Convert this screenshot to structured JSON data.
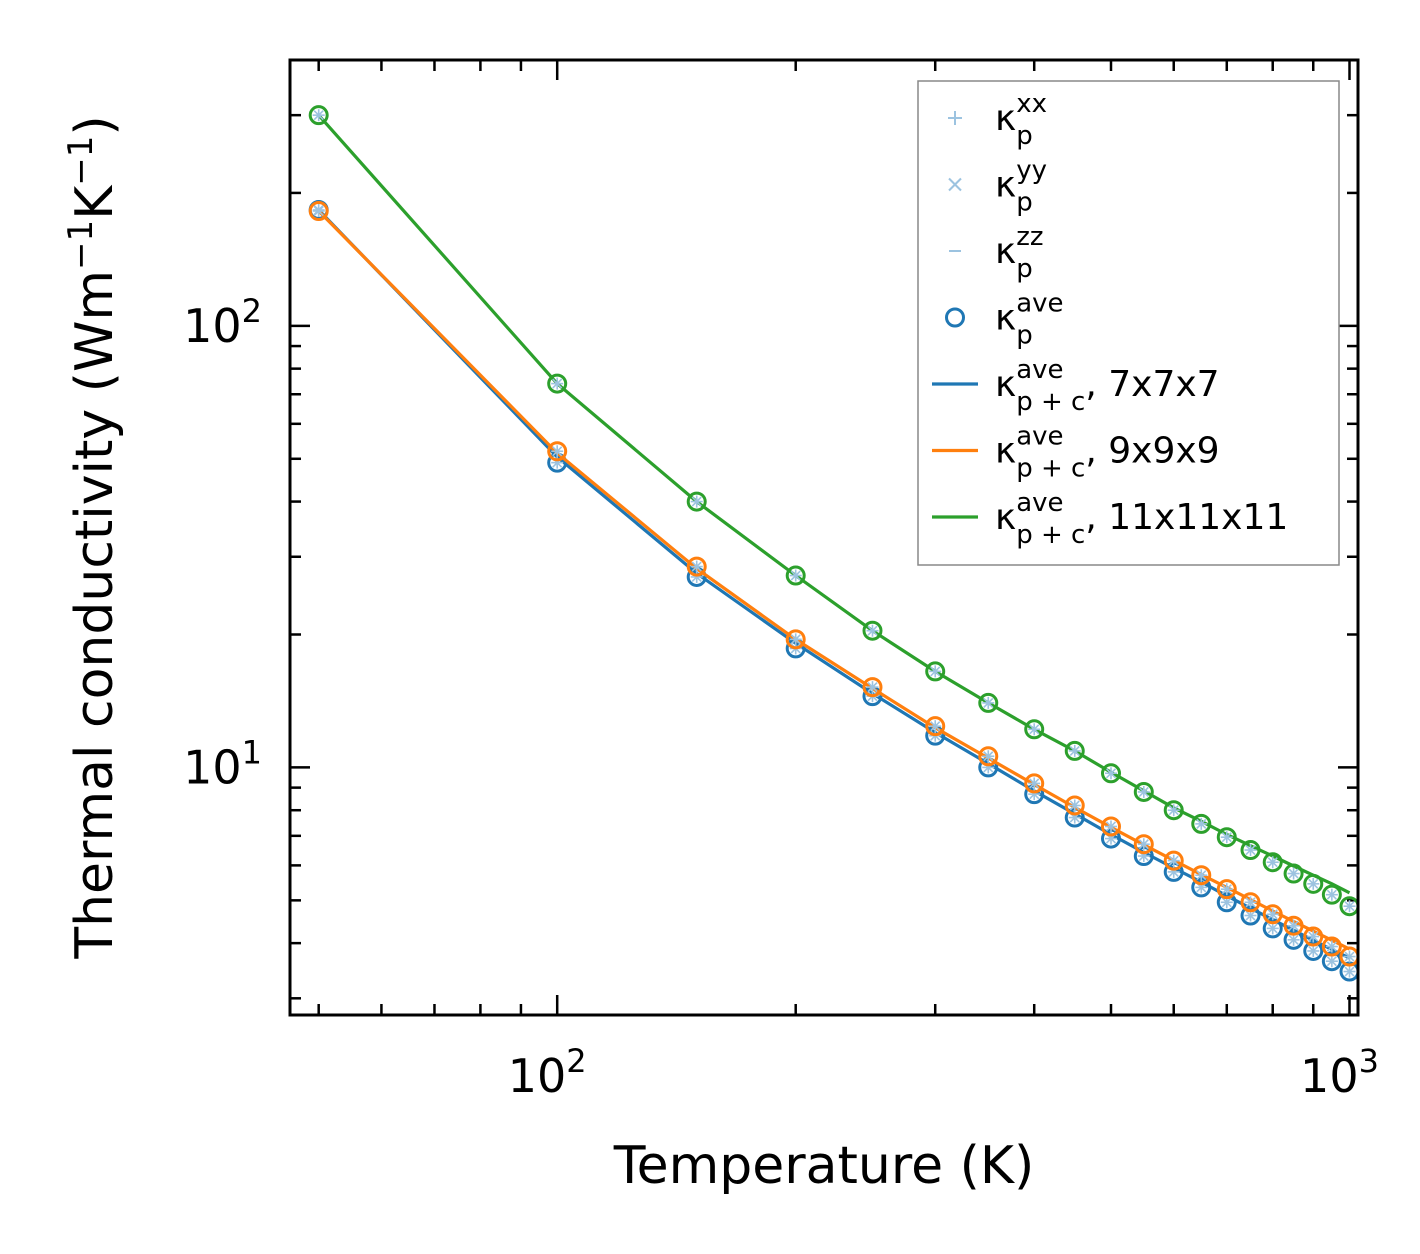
{
  "chart_data": {
    "type": "line",
    "xscale": "log",
    "yscale": "log",
    "xlabel": "Temperature (K)",
    "ylabel": {
      "main": "Thermal conductivity (Wm",
      "e1": "−1",
      "mid": "K",
      "e2": "−1",
      "close": ")"
    },
    "xlim": [
      46,
      1025
    ],
    "ylim": [
      2.75,
      400
    ],
    "x_ticks": [
      {
        "base": "10",
        "exp": "2",
        "value": 100
      },
      {
        "base": "10",
        "exp": "3",
        "value": 1000
      }
    ],
    "y_ticks": [
      {
        "base": "10",
        "exp": "1",
        "value": 10
      },
      {
        "base": "10",
        "exp": "2",
        "value": 100
      }
    ],
    "x": [
      50,
      100,
      150,
      200,
      250,
      300,
      350,
      400,
      450,
      500,
      550,
      600,
      650,
      700,
      750,
      800,
      850,
      900,
      950,
      1000
    ],
    "series": [
      {
        "name": "7x7x7",
        "color": "#1f77b4",
        "points": [
          183,
          49,
          27,
          18.6,
          14.5,
          11.8,
          10.0,
          8.7,
          7.7,
          6.9,
          6.3,
          5.8,
          5.35,
          4.95,
          4.62,
          4.32,
          4.07,
          3.84,
          3.64,
          3.45
        ],
        "line": [
          183,
          50.5,
          27.5,
          19.1,
          14.7,
          12.0,
          10.2,
          8.85,
          7.85,
          7.05,
          6.42,
          5.92,
          5.5,
          5.12,
          4.8,
          4.52,
          4.28,
          4.06,
          3.87,
          3.7
        ]
      },
      {
        "name": "9x9x9",
        "color": "#ff7f0e",
        "points": [
          182,
          52,
          28.5,
          19.5,
          15.2,
          12.4,
          10.6,
          9.2,
          8.2,
          7.35,
          6.7,
          6.15,
          5.7,
          5.3,
          4.95,
          4.65,
          4.38,
          4.14,
          3.93,
          3.73
        ],
        "line": [
          182,
          51.5,
          28.2,
          19.5,
          15.1,
          12.3,
          10.5,
          9.15,
          8.12,
          7.32,
          6.68,
          6.16,
          5.72,
          5.35,
          5.02,
          4.73,
          4.48,
          4.26,
          4.06,
          3.88
        ]
      },
      {
        "name": "11x11x11",
        "color": "#2ca02c",
        "points": [
          300,
          74,
          40,
          27.2,
          20.4,
          16.5,
          14.0,
          12.2,
          10.9,
          9.7,
          8.8,
          8.0,
          7.45,
          6.95,
          6.5,
          6.1,
          5.75,
          5.45,
          5.15,
          4.85
        ],
        "line": [
          300,
          74,
          40,
          27.2,
          20.4,
          16.5,
          14.0,
          12.2,
          10.9,
          9.75,
          8.85,
          8.1,
          7.55,
          7.05,
          6.65,
          6.3,
          5.98,
          5.7,
          5.45,
          5.2
        ]
      }
    ],
    "legend": {
      "placement": "top-right",
      "entries": [
        {
          "symbol": "+",
          "color": "#9cc3e0",
          "main": "κ",
          "sup": "xx",
          "sub": "p",
          "suffix": ""
        },
        {
          "symbol": "×",
          "color": "#9cc3e0",
          "main": "κ",
          "sup": "yy",
          "sub": "p",
          "suffix": ""
        },
        {
          "symbol": "−",
          "color": "#9cc3e0",
          "main": "κ",
          "sup": "zz",
          "sub": "p",
          "suffix": ""
        },
        {
          "symbol": "o",
          "color": "#1f77b4",
          "main": "κ",
          "sup": "ave",
          "sub": "p",
          "suffix": ""
        },
        {
          "symbol": "line",
          "color": "#1f77b4",
          "main": "κ",
          "sup": "ave",
          "sub": "p + c",
          "suffix": ", 7x7x7"
        },
        {
          "symbol": "line",
          "color": "#ff7f0e",
          "main": "κ",
          "sup": "ave",
          "sub": "p + c",
          "suffix": ", 9x9x9"
        },
        {
          "symbol": "line",
          "color": "#2ca02c",
          "main": "κ",
          "sup": "ave",
          "sub": "p + c",
          "suffix": ", 11x11x11"
        }
      ]
    }
  }
}
